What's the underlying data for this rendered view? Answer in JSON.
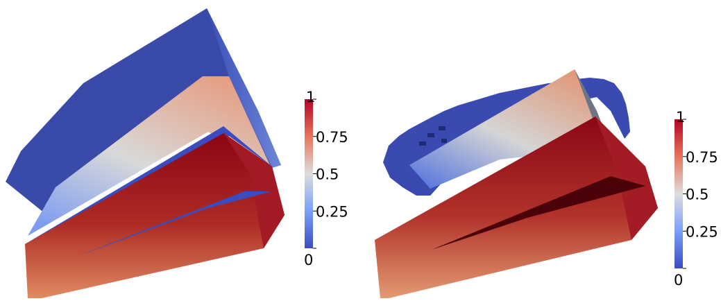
{
  "colors": {
    "blue": "#3b4cc0",
    "white": "#dddddd",
    "red": "#b40426",
    "dark_red": "#7a0413",
    "blue_dark": "#33429f"
  },
  "panels": [
    {
      "colorbar": {
        "ticks": [
          {
            "value": 1,
            "label": "1"
          },
          {
            "value": 0.75,
            "label": "0.75"
          },
          {
            "value": 0.5,
            "label": "0.5"
          },
          {
            "value": 0.25,
            "label": "0.25"
          },
          {
            "value": 0,
            "label": "0"
          }
        ]
      }
    },
    {
      "colorbar": {
        "ticks": [
          {
            "value": 1,
            "label": "1"
          },
          {
            "value": 0.75,
            "label": "0.75"
          },
          {
            "value": 0.5,
            "label": "0.5"
          },
          {
            "value": 0.25,
            "label": "0.25"
          },
          {
            "value": 0,
            "label": "0"
          }
        ]
      }
    }
  ]
}
